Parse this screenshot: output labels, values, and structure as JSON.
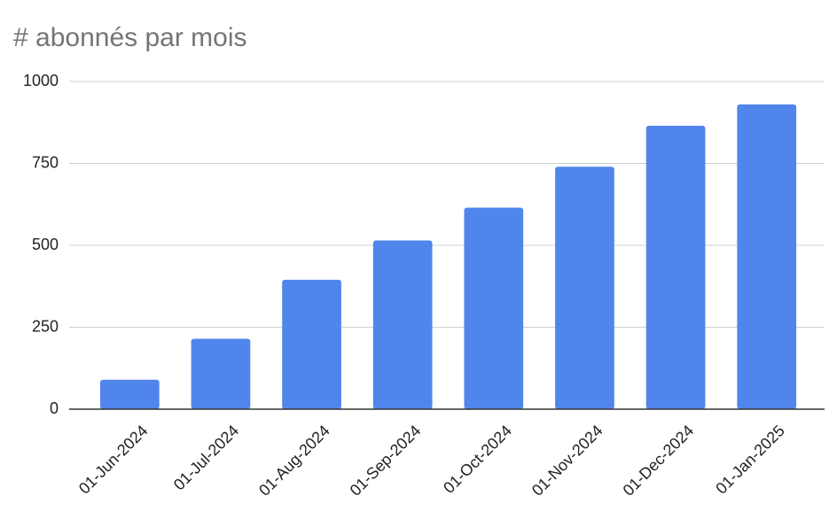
{
  "chart_data": {
    "type": "bar",
    "title": "# abonnés par mois",
    "categories": [
      "01-Jun-2024",
      "01-Jul-2024",
      "01-Aug-2024",
      "01-Sep-2024",
      "01-Oct-2024",
      "01-Nov-2024",
      "01-Dec-2024",
      "01-Jan-2025"
    ],
    "values": [
      90,
      215,
      395,
      515,
      615,
      740,
      865,
      930
    ],
    "color": "#5085ec",
    "ylim": [
      0,
      1000
    ],
    "yticks": [
      0,
      250,
      500,
      750,
      1000
    ],
    "grid": true
  }
}
